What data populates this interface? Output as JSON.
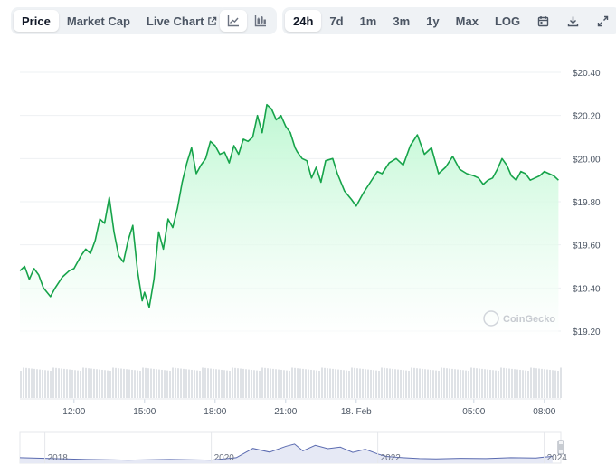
{
  "toolbar": {
    "chart_type_tabs": [
      {
        "label": "Price",
        "active": true
      },
      {
        "label": "Market Cap",
        "active": false
      },
      {
        "label": "Live Chart",
        "active": false,
        "icon": "external-link-icon"
      }
    ],
    "view_icons": [
      "line-chart-icon",
      "candlestick-chart-icon"
    ],
    "ranges": [
      {
        "label": "24h",
        "active": true
      },
      {
        "label": "7d",
        "active": false
      },
      {
        "label": "1m",
        "active": false
      },
      {
        "label": "3m",
        "active": false
      },
      {
        "label": "1y",
        "active": false
      },
      {
        "label": "Max",
        "active": false
      },
      {
        "label": "LOG",
        "active": false
      }
    ],
    "action_icons": [
      "calendar-icon",
      "download-icon",
      "fullscreen-icon"
    ]
  },
  "watermark": "CoinGecko",
  "colors": {
    "line": "#16a34a",
    "fill_top": "#bbf7d0",
    "gridline": "#eef0f3",
    "volume": "#d1d5db",
    "navigator_line": "#5b6bb0",
    "navigator_fill": "#e6e9f5"
  },
  "chart_data": {
    "type": "area",
    "title": "",
    "ylim": [
      19.15,
      20.45
    ],
    "xlim": [
      9.7,
      32.7
    ],
    "yticks": [
      {
        "value": 20.4,
        "label": "$20.40"
      },
      {
        "value": 20.2,
        "label": "$20.20"
      },
      {
        "value": 20.0,
        "label": "$20.00"
      },
      {
        "value": 19.8,
        "label": "$19.80"
      },
      {
        "value": 19.6,
        "label": "$19.60"
      },
      {
        "value": 19.4,
        "label": "$19.40"
      },
      {
        "value": 19.2,
        "label": "$19.20"
      }
    ],
    "xticks": [
      {
        "value": 12,
        "label": "12:00"
      },
      {
        "value": 15,
        "label": "15:00"
      },
      {
        "value": 18,
        "label": "18:00"
      },
      {
        "value": 21,
        "label": "21:00"
      },
      {
        "value": 24,
        "label": "18. Feb"
      },
      {
        "value": 29,
        "label": "05:00"
      },
      {
        "value": 32,
        "label": "08:00"
      }
    ],
    "series": [
      {
        "x": [
          9.7,
          9.9,
          10.1,
          10.3,
          10.5,
          10.7,
          11.0,
          11.2,
          11.5,
          11.8,
          12.0,
          12.3,
          12.5,
          12.7,
          12.9,
          13.1,
          13.3,
          13.5,
          13.7,
          13.9,
          14.1,
          14.3,
          14.5,
          14.7,
          14.9,
          15.0,
          15.2,
          15.4,
          15.6,
          15.8,
          16.0,
          16.2,
          16.4,
          16.6,
          16.8,
          17.0,
          17.2,
          17.4,
          17.6,
          17.8,
          18.0,
          18.2,
          18.4,
          18.6,
          18.8,
          19.0,
          19.2,
          19.4,
          19.6,
          19.8,
          20.0,
          20.2,
          20.4,
          20.6,
          20.8,
          21.0,
          21.2,
          21.4,
          21.5,
          21.7,
          21.9,
          22.1,
          22.3,
          22.5,
          22.7,
          23.0,
          23.2,
          23.5,
          23.8,
          24.0,
          24.3,
          24.6,
          24.9,
          25.1,
          25.4,
          25.7,
          26.0,
          26.3,
          26.6,
          26.9,
          27.2,
          27.5,
          27.8,
          28.1,
          28.4,
          28.7,
          29.0,
          29.2,
          29.4,
          29.6,
          29.8,
          30.0,
          30.2,
          30.4,
          30.6,
          30.8,
          31.0,
          31.2,
          31.4,
          31.6,
          31.8,
          32.0,
          32.2,
          32.4,
          32.6
        ],
        "values": [
          19.48,
          19.5,
          19.44,
          19.49,
          19.46,
          19.4,
          19.36,
          19.4,
          19.45,
          19.48,
          19.49,
          19.55,
          19.58,
          19.56,
          19.62,
          19.72,
          19.7,
          19.82,
          19.66,
          19.55,
          19.52,
          19.62,
          19.69,
          19.48,
          19.34,
          19.38,
          19.31,
          19.44,
          19.66,
          19.58,
          19.72,
          19.68,
          19.77,
          19.89,
          19.98,
          20.05,
          19.93,
          19.97,
          20.0,
          20.08,
          20.06,
          20.02,
          20.03,
          19.98,
          20.06,
          20.02,
          20.09,
          20.08,
          20.1,
          20.2,
          20.12,
          20.25,
          20.23,
          20.18,
          20.2,
          20.15,
          20.12,
          20.05,
          20.03,
          20.0,
          19.99,
          19.91,
          19.96,
          19.89,
          19.99,
          20.0,
          19.93,
          19.85,
          19.81,
          19.78,
          19.84,
          19.89,
          19.94,
          19.93,
          19.98,
          20.0,
          19.97,
          20.06,
          20.11,
          20.02,
          20.05,
          19.93,
          19.96,
          20.01,
          19.95,
          19.93,
          19.92,
          19.91,
          19.88,
          19.9,
          19.91,
          19.95,
          20.0,
          19.97,
          19.92,
          19.9,
          19.94,
          19.93,
          19.9,
          19.91,
          19.92,
          19.94,
          19.93,
          19.92,
          19.9
        ]
      }
    ]
  },
  "navigator": {
    "x_labels": [
      "2018",
      "2020",
      "2022",
      "2024"
    ],
    "x_values": [
      2018,
      2020,
      2022,
      2024
    ],
    "xlim": [
      2017.7,
      2024.2
    ],
    "ylim": [
      0,
      1
    ],
    "series": [
      {
        "x": [
          2017.7,
          2018.0,
          2018.5,
          2019.0,
          2019.5,
          2020.0,
          2020.3,
          2020.5,
          2020.7,
          2020.9,
          2021.0,
          2021.1,
          2021.25,
          2021.4,
          2021.55,
          2021.7,
          2021.85,
          2022.0,
          2022.1,
          2022.3,
          2022.5,
          2022.7,
          2023.0,
          2023.3,
          2023.6,
          2023.9,
          2024.0,
          2024.1
        ],
        "values": [
          0.18,
          0.16,
          0.12,
          0.1,
          0.12,
          0.1,
          0.18,
          0.48,
          0.36,
          0.55,
          0.62,
          0.4,
          0.58,
          0.47,
          0.52,
          0.35,
          0.45,
          0.3,
          0.22,
          0.18,
          0.15,
          0.14,
          0.16,
          0.15,
          0.18,
          0.17,
          0.2,
          0.22
        ]
      }
    ]
  }
}
